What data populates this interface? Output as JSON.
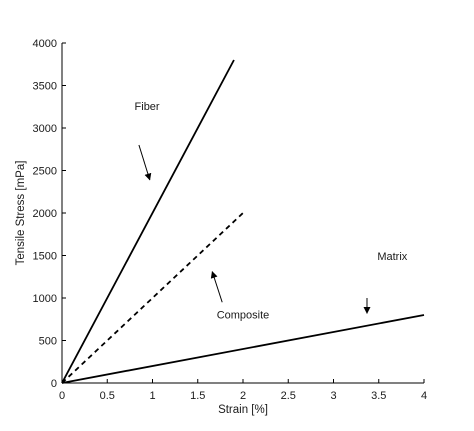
{
  "chart_data": {
    "type": "line",
    "xlabel": "Strain [%]",
    "ylabel": "Tensile Stress [mPa]",
    "xlim": [
      0,
      4
    ],
    "ylim": [
      0,
      4000
    ],
    "xticks": [
      0,
      0.5,
      1,
      1.5,
      2,
      2.5,
      3,
      3.5,
      4
    ],
    "yticks": [
      0,
      500,
      1000,
      1500,
      2000,
      2500,
      3000,
      3500,
      4000
    ],
    "xtick_labels": [
      "0",
      "0.5",
      "1",
      "1.5",
      "2",
      "2.5",
      "3",
      "3.5",
      "4"
    ],
    "ytick_labels": [
      "0",
      "500",
      "1000",
      "1500",
      "2000",
      "2500",
      "3000",
      "3500",
      "4000"
    ],
    "grid": false,
    "legend": "none",
    "series": [
      {
        "name": "Fiber",
        "x": [
          0,
          1.9
        ],
        "y": [
          0,
          3800
        ],
        "style": "solid",
        "color": "#000000"
      },
      {
        "name": "Composite",
        "x": [
          0,
          2.0
        ],
        "y": [
          0,
          2000
        ],
        "style": "dashed",
        "color": "#000000"
      },
      {
        "name": "Matrix",
        "x": [
          0,
          4.0
        ],
        "y": [
          0,
          800
        ],
        "style": "solid",
        "color": "#000000"
      }
    ],
    "annotations": [
      {
        "text": "Fiber",
        "text_x": 0.94,
        "text_y": 3210,
        "arrow_from": [
          0.85,
          2800
        ],
        "arrow_to": [
          0.97,
          2390
        ]
      },
      {
        "text": "Composite",
        "text_x": 2.0,
        "text_y": 760,
        "arrow_from": [
          1.77,
          950
        ],
        "arrow_to": [
          1.66,
          1310
        ]
      },
      {
        "text": "Matrix",
        "text_x": 3.65,
        "text_y": 1450,
        "arrow_from": [
          3.37,
          1000
        ],
        "arrow_to": [
          3.37,
          820
        ]
      }
    ]
  }
}
